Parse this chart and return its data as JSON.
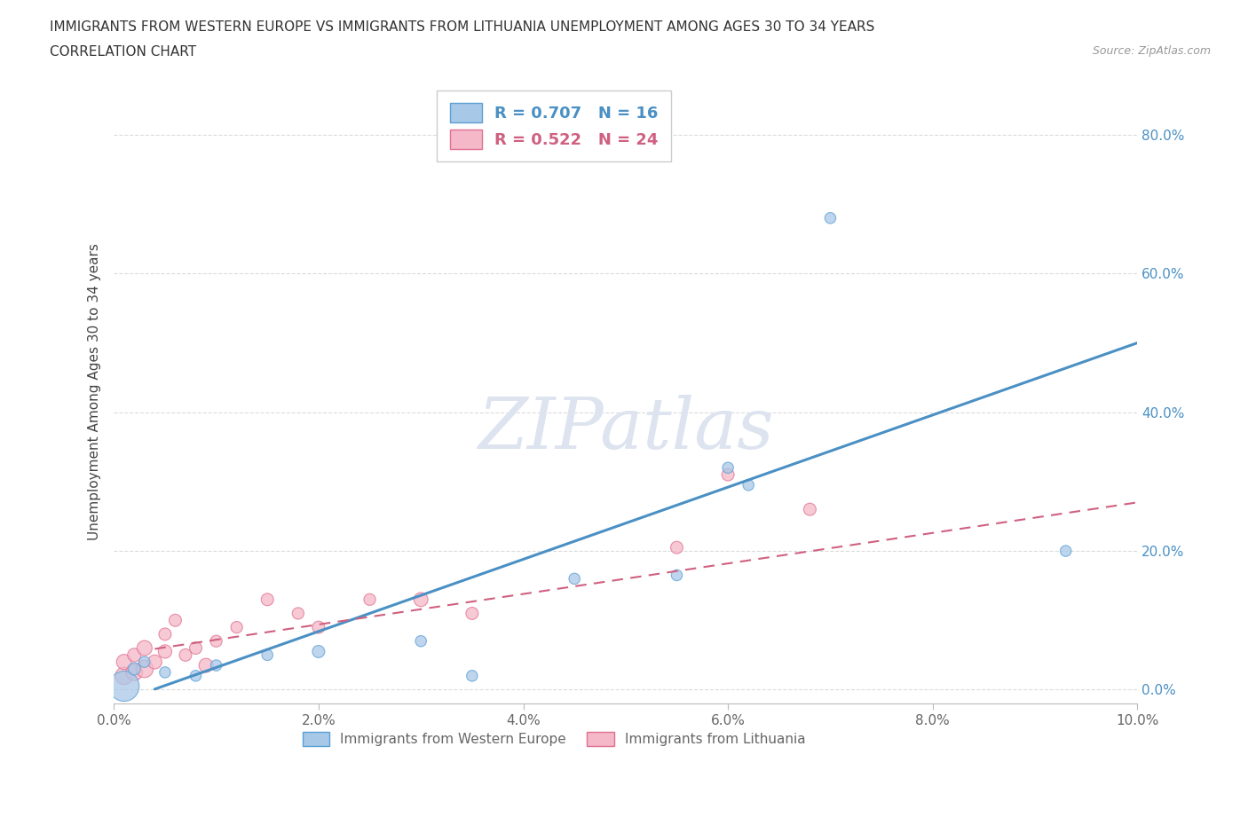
{
  "title_line1": "IMMIGRANTS FROM WESTERN EUROPE VS IMMIGRANTS FROM LITHUANIA UNEMPLOYMENT AMONG AGES 30 TO 34 YEARS",
  "title_line2": "CORRELATION CHART",
  "source": "Source: ZipAtlas.com",
  "ylabel": "Unemployment Among Ages 30 to 34 years",
  "xlim": [
    0.0,
    0.1
  ],
  "ylim": [
    -0.02,
    0.88
  ],
  "xticks": [
    0.0,
    0.02,
    0.04,
    0.06,
    0.08,
    0.1
  ],
  "yticks": [
    0.0,
    0.2,
    0.4,
    0.6,
    0.8
  ],
  "xtick_labels": [
    "0.0%",
    "2.0%",
    "4.0%",
    "6.0%",
    "8.0%",
    "10.0%"
  ],
  "ytick_labels": [
    "0.0%",
    "20.0%",
    "40.0%",
    "60.0%",
    "80.0%"
  ],
  "blue_R": 0.707,
  "blue_N": 16,
  "pink_R": 0.522,
  "pink_N": 24,
  "blue_color": "#a8c8e8",
  "pink_color": "#f4b8c8",
  "blue_edge_color": "#5a9fd4",
  "pink_edge_color": "#e07090",
  "blue_line_color": "#4a90c4",
  "pink_line_color": "#d06080",
  "watermark": "ZIPatlas",
  "watermark_color": "#dde4ef",
  "blue_scatter_x": [
    0.001,
    0.002,
    0.003,
    0.005,
    0.008,
    0.01,
    0.015,
    0.02,
    0.03,
    0.035,
    0.045,
    0.055,
    0.06,
    0.062,
    0.07,
    0.093
  ],
  "blue_scatter_y": [
    0.005,
    0.03,
    0.04,
    0.025,
    0.02,
    0.035,
    0.05,
    0.055,
    0.07,
    0.02,
    0.16,
    0.165,
    0.32,
    0.295,
    0.68,
    0.2
  ],
  "blue_scatter_size": [
    600,
    100,
    80,
    80,
    80,
    80,
    80,
    100,
    80,
    80,
    80,
    80,
    80,
    80,
    80,
    80
  ],
  "pink_scatter_x": [
    0.001,
    0.001,
    0.002,
    0.002,
    0.003,
    0.003,
    0.004,
    0.005,
    0.005,
    0.006,
    0.007,
    0.008,
    0.009,
    0.01,
    0.012,
    0.015,
    0.018,
    0.02,
    0.025,
    0.03,
    0.035,
    0.055,
    0.06,
    0.068
  ],
  "pink_scatter_y": [
    0.02,
    0.04,
    0.025,
    0.05,
    0.03,
    0.06,
    0.04,
    0.055,
    0.08,
    0.1,
    0.05,
    0.06,
    0.035,
    0.07,
    0.09,
    0.13,
    0.11,
    0.09,
    0.13,
    0.13,
    0.11,
    0.205,
    0.31,
    0.26
  ],
  "pink_scatter_size": [
    200,
    150,
    180,
    120,
    200,
    150,
    130,
    120,
    100,
    100,
    100,
    100,
    130,
    90,
    90,
    100,
    90,
    100,
    90,
    130,
    100,
    100,
    100,
    100
  ]
}
